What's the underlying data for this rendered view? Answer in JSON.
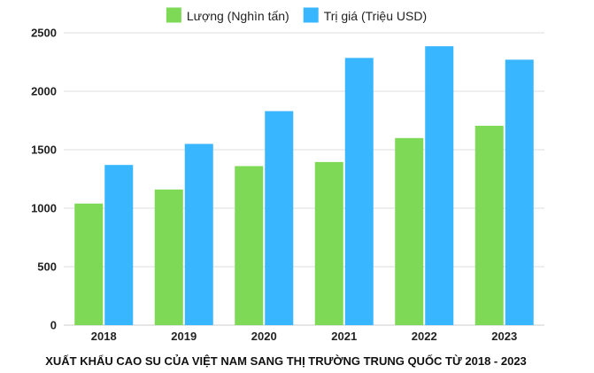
{
  "chart_data": {
    "type": "bar",
    "title": "XUẤT KHẨU CAO SU CỦA VIỆT NAM SANG THỊ TRƯỜNG TRUNG QUỐC TỪ 2018 - 2023",
    "xlabel": "",
    "ylabel": "",
    "categories": [
      "2018",
      "2019",
      "2020",
      "2021",
      "2022",
      "2023"
    ],
    "ylim": [
      0,
      2500
    ],
    "yticks": [
      0,
      500,
      1000,
      1500,
      2000,
      2500
    ],
    "grid": true,
    "legend_position": "top-center",
    "series": [
      {
        "name": "Lượng (Nghìn tấn)",
        "color": "#7ed957",
        "values": [
          1040,
          1160,
          1360,
          1395,
          1600,
          1705
        ]
      },
      {
        "name": "Trị giá (Triệu USD)",
        "color": "#38b6ff",
        "values": [
          1370,
          1550,
          1830,
          2285,
          2385,
          2270
        ]
      }
    ]
  }
}
